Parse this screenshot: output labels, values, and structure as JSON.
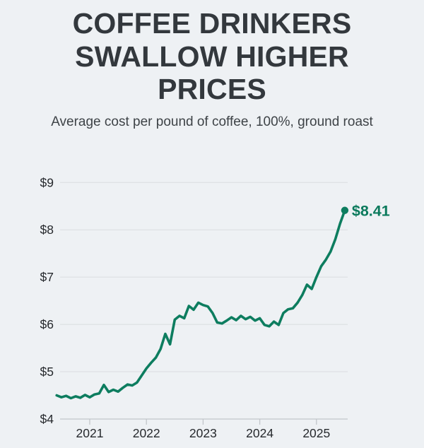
{
  "header": {
    "title": "COFFEE DRINKERS SWALLOW HIGHER PRICES",
    "subtitle": "Average cost per pound of coffee, 100%, ground roast"
  },
  "chart_data": {
    "type": "line",
    "title": "COFFEE DRINKERS SWALLOW HIGHER PRICES",
    "subtitle": "Average cost per pound of coffee, 100%, ground roast",
    "xlabel": "",
    "ylabel": "",
    "ylim": [
      4,
      9
    ],
    "grid": "horizontal",
    "y_tick_labels": [
      "$4",
      "$5",
      "$6",
      "$7",
      "$8",
      "$9"
    ],
    "x_tick_labels": [
      "2021",
      "2022",
      "2023",
      "2024",
      "2025"
    ],
    "end_label": "$8.41",
    "line_color": "#0d7d5f",
    "label_color": "#0b7a5c",
    "grid_color": "#d9dcdf",
    "axis_color": "#c2c6ca",
    "tick_text_color": "#26292d",
    "background_color": "#eef1f4",
    "series": [
      {
        "name": "Average cost per pound of coffee, 100%, ground roast",
        "x": [
          "2020-06",
          "2020-07",
          "2020-08",
          "2020-09",
          "2020-10",
          "2020-11",
          "2020-12",
          "2021-01",
          "2021-02",
          "2021-03",
          "2021-04",
          "2021-05",
          "2021-06",
          "2021-07",
          "2021-08",
          "2021-09",
          "2021-10",
          "2021-11",
          "2021-12",
          "2022-01",
          "2022-02",
          "2022-03",
          "2022-04",
          "2022-05",
          "2022-06",
          "2022-07",
          "2022-08",
          "2022-09",
          "2022-10",
          "2022-11",
          "2022-12",
          "2023-01",
          "2023-02",
          "2023-03",
          "2023-04",
          "2023-05",
          "2023-06",
          "2023-07",
          "2023-08",
          "2023-09",
          "2023-10",
          "2023-11",
          "2023-12",
          "2024-01",
          "2024-02",
          "2024-03",
          "2024-04",
          "2024-05",
          "2024-06",
          "2024-07",
          "2024-08",
          "2024-09",
          "2024-10",
          "2024-11",
          "2024-12",
          "2025-01",
          "2025-02",
          "2025-03",
          "2025-04",
          "2025-05",
          "2025-06",
          "2025-07"
        ],
        "values": [
          4.5,
          4.46,
          4.49,
          4.44,
          4.48,
          4.45,
          4.51,
          4.46,
          4.52,
          4.54,
          4.72,
          4.57,
          4.62,
          4.58,
          4.66,
          4.73,
          4.71,
          4.77,
          4.92,
          5.07,
          5.19,
          5.3,
          5.48,
          5.8,
          5.58,
          6.1,
          6.18,
          6.13,
          6.39,
          6.31,
          6.46,
          6.41,
          6.38,
          6.24,
          6.04,
          6.02,
          6.08,
          6.15,
          6.09,
          6.18,
          6.11,
          6.16,
          6.08,
          6.13,
          5.99,
          5.96,
          6.06,
          5.99,
          6.24,
          6.32,
          6.34,
          6.46,
          6.62,
          6.84,
          6.75,
          7.0,
          7.23,
          7.37,
          7.54,
          7.8,
          8.13,
          8.41
        ],
        "last_value": 8.41
      }
    ]
  }
}
